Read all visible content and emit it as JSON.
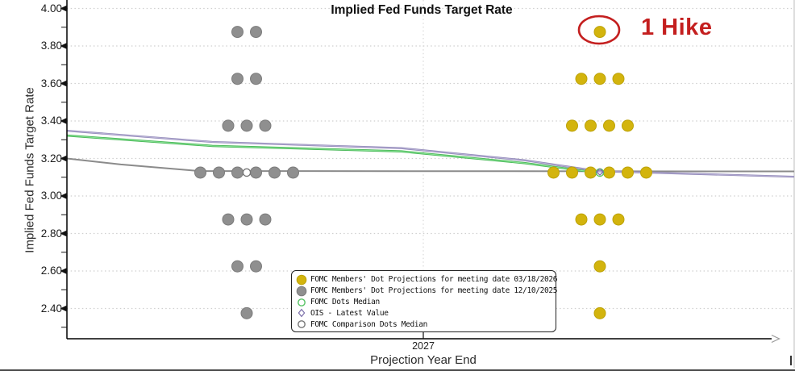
{
  "annotation": {
    "text": "1 Hike",
    "color": "#c41f1f"
  },
  "legend": {
    "items": [
      {
        "label": "FOMC Members' Dot Projections for meeting date 03/18/2026",
        "marker": "filled-circle",
        "color": "#d3b40d",
        "edge": "#bda309"
      },
      {
        "label": "FOMC Members' Dot Projections for meeting date 12/10/2025",
        "marker": "filled-circle",
        "color": "#8f8f8f",
        "edge": "#7c7c7c"
      },
      {
        "label": "FOMC Dots Median",
        "marker": "open-circle",
        "color": "#55c263"
      },
      {
        "label": "OIS - Latest Value",
        "marker": "open-diamond",
        "color": "#7b6faa"
      },
      {
        "label": "FOMC Comparison Dots Median",
        "marker": "open-circle",
        "color": "#767676"
      }
    ]
  },
  "chart_data": {
    "type": "scatter",
    "title": "Implied Fed Funds Target Rate",
    "xlabel": "Projection Year End",
    "ylabel": "Implied Fed Funds Target Rate",
    "x_categories": [
      "2027"
    ],
    "y_ticks": [
      4.0,
      3.8,
      3.6,
      3.4,
      3.2,
      3.0,
      2.8,
      2.6,
      2.4
    ],
    "y_minor_ticks": [
      3.9,
      3.7,
      3.5,
      3.3,
      3.1,
      2.9,
      2.7,
      2.5,
      2.3
    ],
    "ylim": [
      2.24,
      4.04
    ],
    "grid": "horizontal dashed at each major tick; vertical dashed at 2027",
    "legend_position": "bottom-center",
    "series": [
      {
        "name": "FOMC Members' Dot Projections for meeting date 03/18/2026",
        "key": "current",
        "color": "#d3b40d",
        "edge": "#bda309",
        "dot_counts": {
          "3.875": 1,
          "3.625": 3,
          "3.375": 4,
          "3.125": 6,
          "2.875": 3,
          "2.625": 1,
          "2.375": 1
        }
      },
      {
        "name": "FOMC Members' Dot Projections for meeting date 12/10/2025",
        "key": "comparison",
        "color": "#8f8f8f",
        "edge": "#7c7c7c",
        "dot_counts": {
          "3.875": 2,
          "3.625": 2,
          "3.375": 3,
          "3.125": 6,
          "2.875": 3,
          "2.625": 2,
          "2.375": 1
        }
      }
    ],
    "lines": [
      {
        "name": "FOMC Comparison Dots Median",
        "color": "#8b8b8b",
        "highlight": null,
        "points": [
          [
            0,
            3.2
          ],
          [
            0.074,
            3.168
          ],
          [
            0.183,
            3.133
          ],
          [
            1,
            3.131
          ]
        ]
      },
      {
        "name": "FOMC Dots Median",
        "color": "#46b655",
        "highlight": "#8fe79b",
        "points": [
          [
            0,
            3.322
          ],
          [
            0.2,
            3.267
          ],
          [
            0.46,
            3.238
          ],
          [
            0.63,
            3.175
          ],
          [
            0.725,
            3.127
          ]
        ]
      },
      {
        "name": "OIS - Latest Value",
        "color": "#8d84b6",
        "highlight": "#bdb6d8",
        "points": [
          [
            0,
            3.348
          ],
          [
            0.2,
            3.288
          ],
          [
            0.46,
            3.255
          ],
          [
            0.63,
            3.19
          ],
          [
            0.732,
            3.132
          ],
          [
            1,
            3.103
          ]
        ]
      }
    ],
    "point_markers": [
      {
        "name": "FOMC Comparison Dots Median",
        "shape": "open-circle",
        "color": "#767676",
        "fill": "#ffffff",
        "value": 3.125,
        "cluster": "comparison"
      },
      {
        "name": "FOMC Dots Median",
        "shape": "open-circle",
        "color": "#55c263",
        "fill": "none",
        "value": 3.125,
        "cluster": "current"
      },
      {
        "name": "OIS - Latest Value",
        "shape": "open-diamond",
        "color": "#7b6faa",
        "fill": "none",
        "value": 3.125,
        "cluster": "current"
      }
    ],
    "annotation_target": {
      "value": 3.875,
      "cluster": "current"
    }
  }
}
